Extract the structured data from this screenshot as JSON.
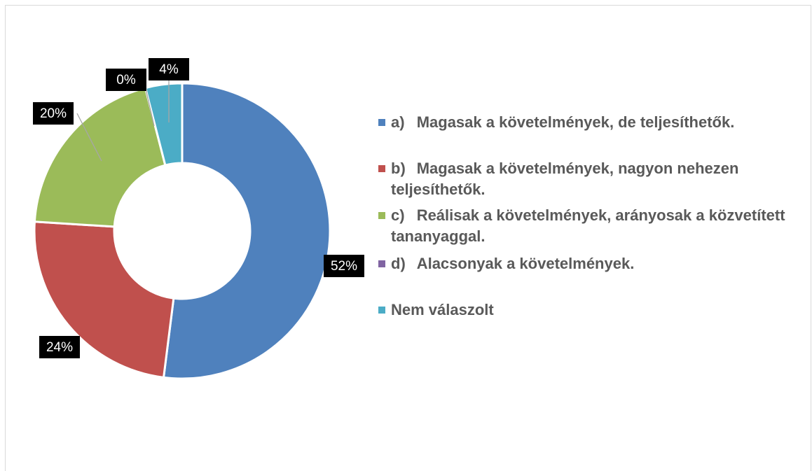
{
  "chart_data": {
    "type": "donut",
    "categories": [
      "a)\tMagasak a követelmények, de teljesíthetők.",
      "b)\tMagasak a követelmények, nagyon nehezen teljesíthetők.",
      "c)\tReálisak a követelmények, arányosak a közvetített tananyaggal.",
      "d)\tAlacsonyak a követelmények.",
      "Nem válaszolt"
    ],
    "values": [
      52,
      24,
      20,
      0,
      4
    ],
    "value_labels": [
      "52%",
      "24%",
      "20%",
      "0%",
      "4%"
    ],
    "colors": [
      "#4f81bd",
      "#c0504d",
      "#9bbb59",
      "#8064a2",
      "#4bacc6"
    ],
    "legend": "right"
  }
}
